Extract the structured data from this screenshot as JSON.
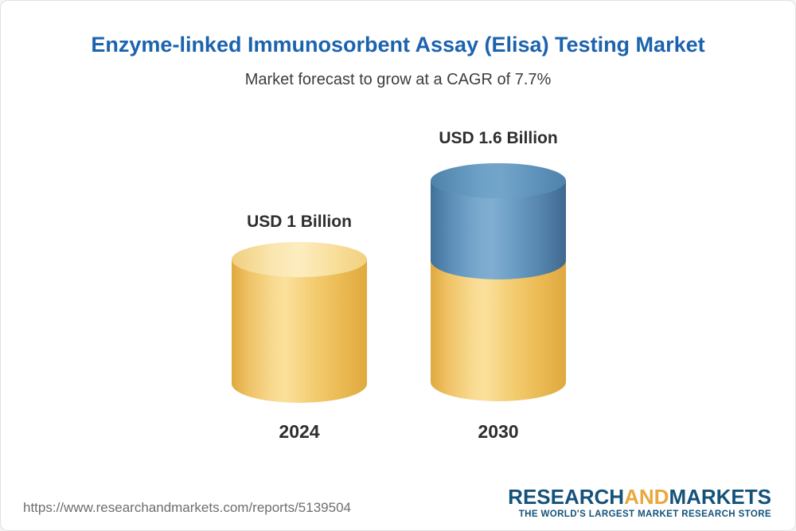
{
  "header": {
    "title": "Enzyme-linked Immunosorbent Assay (Elisa) Testing Market",
    "subtitle": "Market forecast to grow at a CAGR of 7.7%"
  },
  "chart_data": {
    "type": "bar",
    "variant": "3d-cylinder",
    "title": "Enzyme-linked Immunosorbent Assay (Elisa) Testing Market",
    "subtitle": "Market forecast to grow at a CAGR of 7.7%",
    "categories": [
      "2024",
      "2030"
    ],
    "values": [
      1.0,
      1.6
    ],
    "unit": "USD Billion",
    "value_labels": [
      "USD 1 Billion",
      "USD 1.6 Billion"
    ],
    "cagr_percent": 7.7,
    "xlabel": "",
    "ylabel": "",
    "ylim": [
      0,
      1.8
    ],
    "grid": false,
    "legend": false,
    "colors": {
      "base_segment": "#f3cb6f",
      "growth_segment": "#5e92ba",
      "title_text": "#1c63ae"
    }
  },
  "footer": {
    "url": "https://www.researchandmarkets.com/reports/5139504",
    "logo": {
      "part1": "RESEARCH",
      "part2": "AND",
      "part3": "MARKETS",
      "tagline": "THE WORLD'S LARGEST MARKET RESEARCH STORE",
      "brand_blue": "#14527a",
      "brand_gold": "#e9a83c"
    }
  }
}
